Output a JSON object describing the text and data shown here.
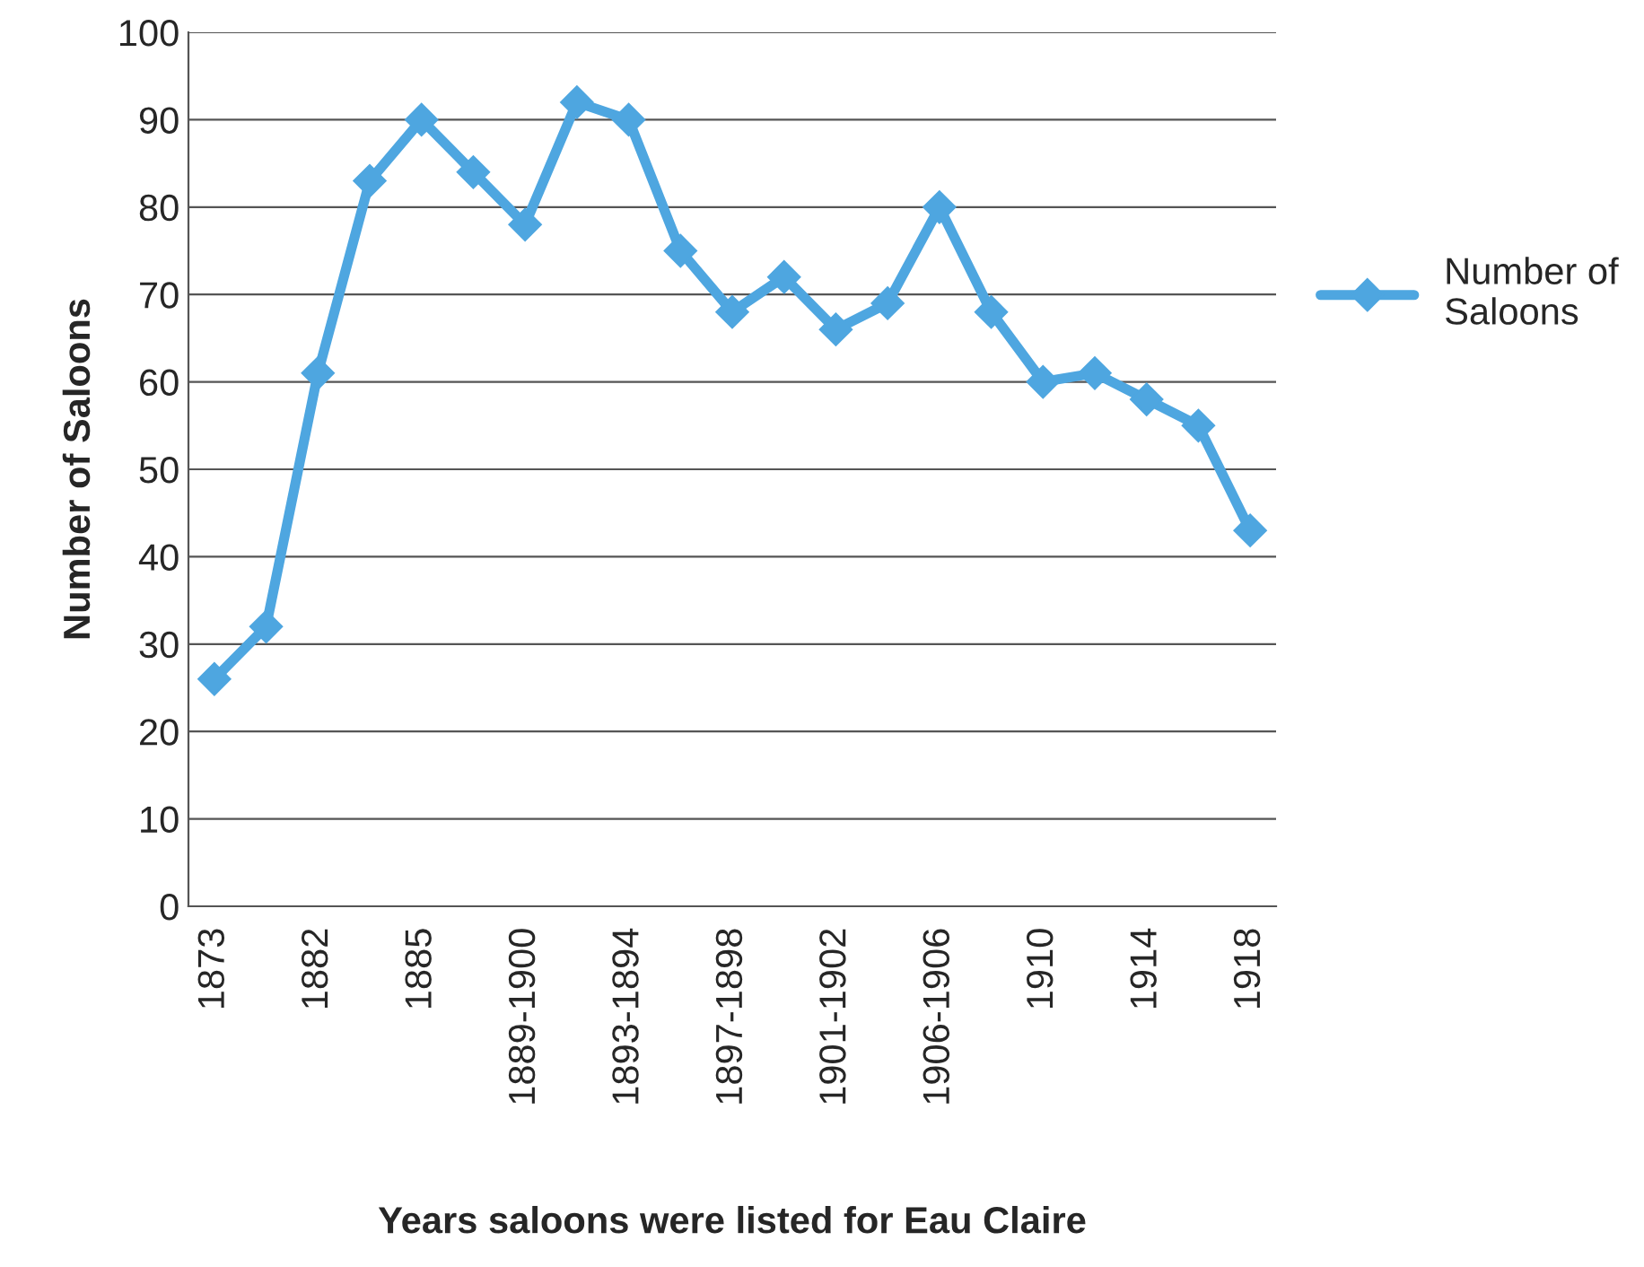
{
  "chart_data": {
    "type": "line",
    "xlabel": "Years saloons were listed for Eau Claire",
    "ylabel": "Number of Saloons",
    "categories": [
      "1873",
      null,
      "1882",
      null,
      "1885",
      null,
      "1889-1900",
      null,
      "1893-1894",
      null,
      "1897-1898",
      null,
      "1901-1902",
      null,
      "1906-1906",
      null,
      "1910",
      null,
      "1914",
      null,
      "1918"
    ],
    "series": [
      {
        "name": "Number of Saloons",
        "color": "#4ea6e0",
        "values": [
          26,
          32,
          61,
          83,
          90,
          84,
          78,
          92,
          90,
          75,
          68,
          72,
          66,
          69,
          80,
          68,
          60,
          61,
          58,
          55,
          43
        ]
      }
    ],
    "ylim": [
      0,
      100
    ],
    "yticks": [
      0,
      10,
      20,
      30,
      40,
      50,
      60,
      70,
      80,
      90,
      100
    ],
    "grid": "y",
    "legend": "right",
    "marker": "diamond",
    "line_style": "solid"
  }
}
